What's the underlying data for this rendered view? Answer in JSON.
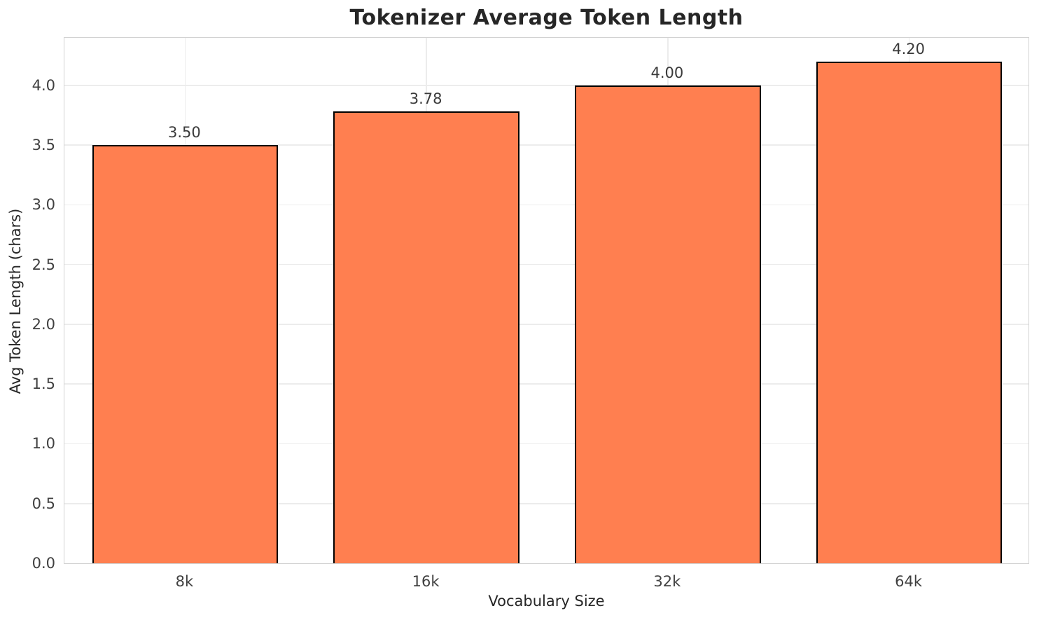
{
  "chart_data": {
    "type": "bar",
    "title": "Tokenizer Average Token Length",
    "categories": [
      "8k",
      "16k",
      "32k",
      "64k"
    ],
    "values": [
      3.5,
      3.78,
      4.0,
      4.2
    ],
    "value_labels": [
      "3.50",
      "3.78",
      "4.00",
      "4.20"
    ],
    "xlabel": "Vocabulary Size",
    "ylabel": "Avg Token Length (chars)",
    "yticks": [
      0.0,
      0.5,
      1.0,
      1.5,
      2.0,
      2.5,
      3.0,
      3.5,
      4.0
    ],
    "ytick_labels": [
      "0.0",
      "0.5",
      "1.0",
      "1.5",
      "2.0",
      "2.5",
      "3.0",
      "3.5",
      "4.0"
    ],
    "ylim": [
      0,
      4.41
    ],
    "grid": true,
    "legend": false,
    "bar_color": "#FF7F50",
    "bar_edge_color": "#000000",
    "grid_color": "#ececec",
    "spine_color": "#d2d2d2"
  }
}
